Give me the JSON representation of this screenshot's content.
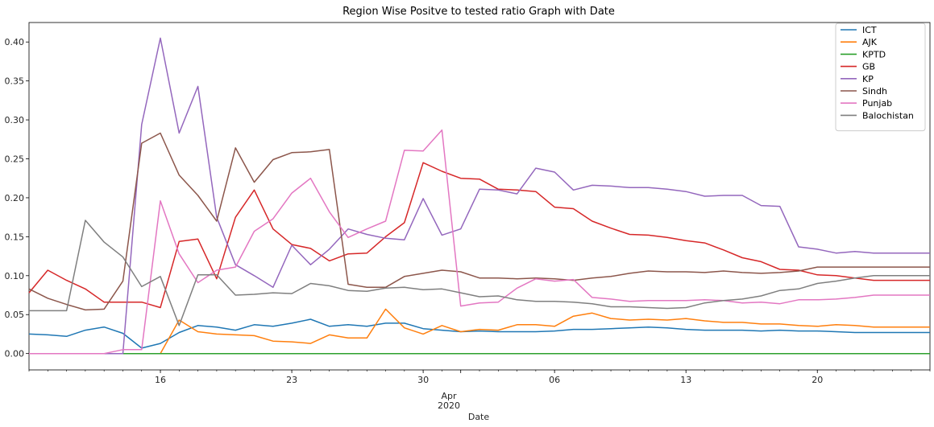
{
  "chart_data": {
    "type": "line",
    "title": "Region Wise Positve to tested ratio Graph with Date",
    "xlabel": "Date",
    "ylabel": "",
    "ylim": [
      -0.021,
      0.425
    ],
    "yticks": [
      "0.00",
      "0.05",
      "0.10",
      "0.15",
      "0.20",
      "0.25",
      "0.30",
      "0.35",
      "0.40"
    ],
    "x_start": "2020-03-09",
    "x_end": "2020-04-26",
    "xticks": [
      {
        "date": "2020-03-16",
        "label": "16"
      },
      {
        "date": "2020-03-23",
        "label": "23"
      },
      {
        "date": "2020-03-30",
        "label": "30"
      },
      {
        "date": "2020-04-06",
        "label": "06"
      },
      {
        "date": "2020-04-13",
        "label": "13"
      },
      {
        "date": "2020-04-20",
        "label": "20"
      }
    ],
    "x_month_label": "Apr",
    "x_year_label": "2020",
    "grid": false,
    "legend_position": "top-right",
    "dates": [
      "2020-03-09",
      "2020-03-10",
      "2020-03-11",
      "2020-03-12",
      "2020-03-13",
      "2020-03-14",
      "2020-03-15",
      "2020-03-16",
      "2020-03-17",
      "2020-03-18",
      "2020-03-19",
      "2020-03-20",
      "2020-03-21",
      "2020-03-22",
      "2020-03-23",
      "2020-03-24",
      "2020-03-25",
      "2020-03-26",
      "2020-03-27",
      "2020-03-28",
      "2020-03-29",
      "2020-03-30",
      "2020-03-31",
      "2020-04-01",
      "2020-04-02",
      "2020-04-03",
      "2020-04-04",
      "2020-04-05",
      "2020-04-06",
      "2020-04-07",
      "2020-04-08",
      "2020-04-09",
      "2020-04-10",
      "2020-04-11",
      "2020-04-12",
      "2020-04-13",
      "2020-04-14",
      "2020-04-15",
      "2020-04-16",
      "2020-04-17",
      "2020-04-18",
      "2020-04-19",
      "2020-04-20",
      "2020-04-21",
      "2020-04-22",
      "2020-04-23",
      "2020-04-24",
      "2020-04-25",
      "2020-04-26"
    ],
    "series": [
      {
        "name": "ICT",
        "color": "#1f77b4",
        "values": [
          0.025,
          0.024,
          0.022,
          0.03,
          0.034,
          0.026,
          0.007,
          0.013,
          0.027,
          0.036,
          0.034,
          0.03,
          0.037,
          0.035,
          0.039,
          0.044,
          0.035,
          0.037,
          0.035,
          0.039,
          0.039,
          0.032,
          0.03,
          0.028,
          0.029,
          0.028,
          0.028,
          0.028,
          0.029,
          0.031,
          0.031,
          0.032,
          0.033,
          0.034,
          0.033,
          0.031,
          0.03,
          0.03,
          0.03,
          0.029,
          0.03,
          0.029,
          0.029,
          0.028,
          0.027,
          0.027,
          0.027,
          0.027,
          0.027
        ]
      },
      {
        "name": "AJK",
        "color": "#ff7f0e",
        "values": [
          0.0,
          0.0,
          0.0,
          0.0,
          0.0,
          0.0,
          0.0,
          0.0,
          0.043,
          0.028,
          0.025,
          0.024,
          0.023,
          0.016,
          0.015,
          0.013,
          0.024,
          0.02,
          0.02,
          0.057,
          0.033,
          0.025,
          0.036,
          0.028,
          0.031,
          0.03,
          0.037,
          0.037,
          0.035,
          0.048,
          0.052,
          0.045,
          0.043,
          0.044,
          0.043,
          0.045,
          0.042,
          0.04,
          0.04,
          0.038,
          0.038,
          0.036,
          0.035,
          0.037,
          0.036,
          0.034,
          0.034,
          0.034,
          0.034
        ]
      },
      {
        "name": "KPTD",
        "color": "#2ca02c",
        "values": [
          0.0,
          0.0,
          0.0,
          0.0,
          0.0,
          0.0,
          0.0,
          0.0,
          0.0,
          0.0,
          0.0,
          0.0,
          0.0,
          0.0,
          0.0,
          0.0,
          0.0,
          0.0,
          0.0,
          0.0,
          0.0,
          0.0,
          0.0,
          0.0,
          0.0,
          0.0,
          0.0,
          0.0,
          0.0,
          0.0,
          0.0,
          0.0,
          0.0,
          0.0,
          0.0,
          0.0,
          0.0,
          0.0,
          0.0,
          0.0,
          0.0,
          0.0,
          0.0,
          0.0,
          0.0,
          0.0,
          0.0,
          0.0,
          0.0
        ]
      },
      {
        "name": "GB",
        "color": "#d62728",
        "values": [
          0.078,
          0.107,
          0.094,
          0.083,
          0.066,
          0.066,
          0.066,
          0.059,
          0.144,
          0.147,
          0.096,
          0.175,
          0.21,
          0.16,
          0.14,
          0.135,
          0.119,
          0.128,
          0.129,
          0.15,
          0.168,
          0.245,
          0.234,
          0.225,
          0.224,
          0.211,
          0.21,
          0.208,
          0.188,
          0.186,
          0.17,
          0.161,
          0.153,
          0.152,
          0.149,
          0.145,
          0.142,
          0.133,
          0.123,
          0.118,
          0.108,
          0.107,
          0.101,
          0.1,
          0.097,
          0.094,
          0.094,
          0.094,
          0.094
        ]
      },
      {
        "name": "KP",
        "color": "#9467bd",
        "values": [
          0.0,
          0.0,
          0.0,
          0.0,
          0.0,
          0.0,
          0.294,
          0.405,
          0.283,
          0.343,
          0.175,
          0.114,
          0.1,
          0.085,
          0.139,
          0.114,
          0.134,
          0.16,
          0.153,
          0.148,
          0.146,
          0.199,
          0.152,
          0.16,
          0.211,
          0.21,
          0.205,
          0.238,
          0.233,
          0.21,
          0.216,
          0.215,
          0.213,
          0.213,
          0.211,
          0.208,
          0.202,
          0.203,
          0.203,
          0.19,
          0.189,
          0.137,
          0.134,
          0.129,
          0.131,
          0.129,
          0.129,
          0.129,
          0.129
        ]
      },
      {
        "name": "Sindh",
        "color": "#8c564b",
        "values": [
          0.083,
          0.071,
          0.063,
          0.056,
          0.057,
          0.093,
          0.27,
          0.283,
          0.229,
          0.203,
          0.17,
          0.264,
          0.22,
          0.249,
          0.258,
          0.259,
          0.262,
          0.089,
          0.085,
          0.085,
          0.099,
          0.103,
          0.107,
          0.105,
          0.097,
          0.097,
          0.096,
          0.097,
          0.096,
          0.094,
          0.097,
          0.099,
          0.103,
          0.106,
          0.105,
          0.105,
          0.104,
          0.106,
          0.104,
          0.103,
          0.104,
          0.106,
          0.111,
          0.111,
          0.111,
          0.111,
          0.111,
          0.111,
          0.111
        ]
      },
      {
        "name": "Punjab",
        "color": "#e377c2",
        "values": [
          0.0,
          0.0,
          0.0,
          0.0,
          0.0,
          0.005,
          0.005,
          0.196,
          0.128,
          0.091,
          0.107,
          0.111,
          0.157,
          0.173,
          0.206,
          0.225,
          0.182,
          0.149,
          0.16,
          0.17,
          0.261,
          0.26,
          0.287,
          0.061,
          0.065,
          0.066,
          0.084,
          0.096,
          0.093,
          0.095,
          0.072,
          0.07,
          0.067,
          0.068,
          0.068,
          0.068,
          0.069,
          0.068,
          0.065,
          0.066,
          0.064,
          0.069,
          0.069,
          0.07,
          0.072,
          0.075,
          0.075,
          0.075,
          0.075
        ]
      },
      {
        "name": "Balochistan",
        "color": "#7f7f7f",
        "values": [
          0.055,
          0.055,
          0.055,
          0.171,
          0.143,
          0.124,
          0.086,
          0.099,
          0.036,
          0.101,
          0.101,
          0.075,
          0.076,
          0.078,
          0.077,
          0.09,
          0.087,
          0.081,
          0.08,
          0.084,
          0.085,
          0.082,
          0.083,
          0.078,
          0.073,
          0.074,
          0.069,
          0.067,
          0.067,
          0.066,
          0.064,
          0.06,
          0.06,
          0.059,
          0.058,
          0.059,
          0.065,
          0.068,
          0.07,
          0.074,
          0.081,
          0.083,
          0.09,
          0.093,
          0.097,
          0.1,
          0.1,
          0.1,
          0.1
        ]
      }
    ]
  }
}
